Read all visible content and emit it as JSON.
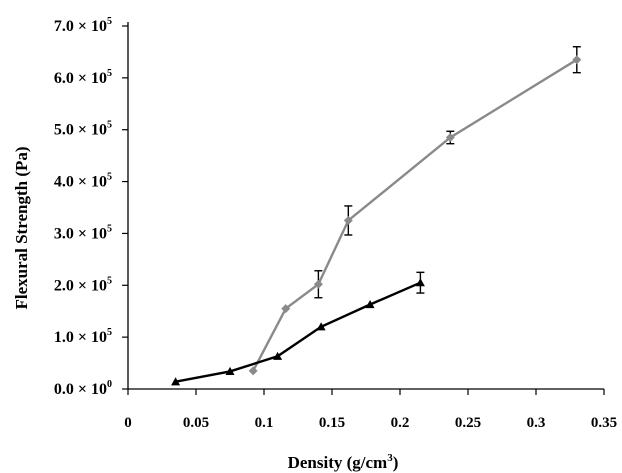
{
  "chart_data": {
    "type": "line",
    "title": "",
    "xlabel": {
      "main": "Density (g/cm",
      "sup": "3",
      "end": ")"
    },
    "ylabel": "Flexural Strength (Pa)",
    "xlim": [
      0,
      0.35
    ],
    "ylim": [
      0,
      700000
    ],
    "grid": false,
    "legend": "none",
    "x_ticks": [
      "0",
      "0.05",
      "0.1",
      "0.15",
      "0.2",
      "0.25",
      "0.3",
      "0.35"
    ],
    "y_ticks": [
      {
        "mantissa": "0.0",
        "exp": "0",
        "value": 0
      },
      {
        "mantissa": "1.0",
        "exp": "5",
        "value": 100000
      },
      {
        "mantissa": "2.0",
        "exp": "5",
        "value": 200000
      },
      {
        "mantissa": "3.0",
        "exp": "5",
        "value": 300000
      },
      {
        "mantissa": "4.0",
        "exp": "5",
        "value": 400000
      },
      {
        "mantissa": "5.0",
        "exp": "5",
        "value": 500000
      },
      {
        "mantissa": "6.0",
        "exp": "5",
        "value": 600000
      },
      {
        "mantissa": "7.0",
        "exp": "5",
        "value": 700000
      }
    ],
    "y_times": "×",
    "y_base": "10",
    "series": [
      {
        "color": "#8a8a8a",
        "marker": "diamond",
        "points": [
          {
            "x": 0.092,
            "y": 35000,
            "err": 0
          },
          {
            "x": 0.116,
            "y": 155000,
            "err": 0
          },
          {
            "x": 0.14,
            "y": 202000,
            "err": 26000
          },
          {
            "x": 0.162,
            "y": 325000,
            "err": 28000
          },
          {
            "x": 0.237,
            "y": 485000,
            "err": 12000
          },
          {
            "x": 0.33,
            "y": 635000,
            "err": 25000
          }
        ]
      },
      {
        "color": "#000000",
        "marker": "triangle",
        "points": [
          {
            "x": 0.035,
            "y": 14000,
            "err": 0
          },
          {
            "x": 0.075,
            "y": 34000,
            "err": 0
          },
          {
            "x": 0.11,
            "y": 63000,
            "err": 0
          },
          {
            "x": 0.142,
            "y": 120000,
            "err": 0
          },
          {
            "x": 0.178,
            "y": 163000,
            "err": 0
          },
          {
            "x": 0.215,
            "y": 205000,
            "err": 20000
          }
        ]
      }
    ]
  }
}
